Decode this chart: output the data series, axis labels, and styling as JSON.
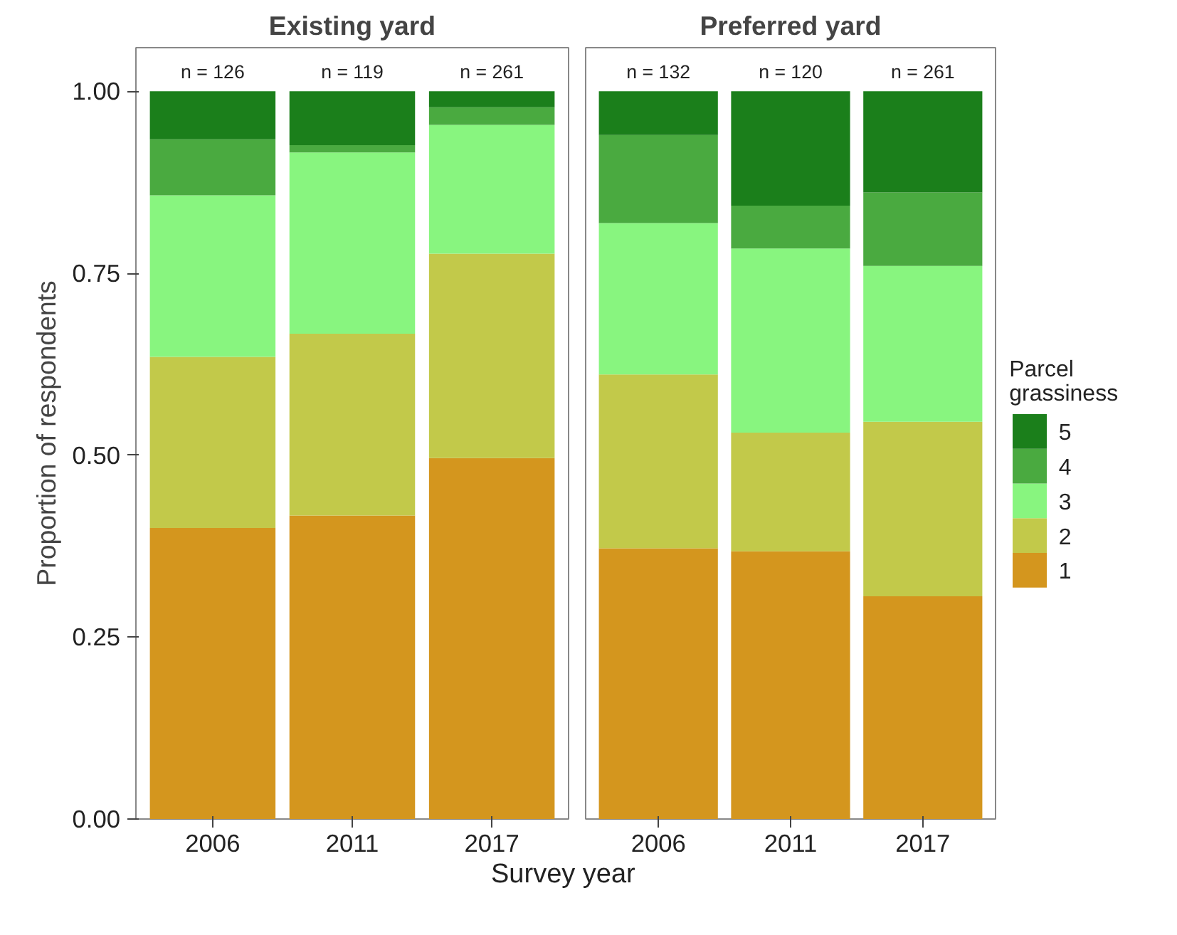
{
  "chart_data": [
    {
      "type": "bar",
      "stacked": true,
      "title": "Existing yard",
      "ylabel": "Proportion of respondents",
      "xlabel": "Survey year",
      "categories": [
        "2006",
        "2011",
        "2017"
      ],
      "ylim": [
        0,
        1.06
      ],
      "yticks": [
        {
          "value": 0,
          "label": "0.00"
        },
        {
          "value": 0.25,
          "label": "0.25"
        },
        {
          "value": 0.5,
          "label": "0.50"
        },
        {
          "value": 0.75,
          "label": "0.75"
        },
        {
          "value": 1,
          "label": "1.00"
        }
      ],
      "grid": false,
      "legend": false,
      "series": [
        {
          "color": "#d4961e",
          "values": [
            0.4,
            0.417,
            0.496
          ]
        },
        {
          "color": "#c2c94a",
          "values": [
            0.235,
            0.25,
            0.281
          ]
        },
        {
          "color": "#88f57f",
          "values": [
            0.222,
            0.249,
            0.177
          ]
        },
        {
          "color": "#4aaa40",
          "values": [
            0.077,
            0.01,
            0.024
          ]
        },
        {
          "color": "#1b7f1b",
          "values": [
            0.066,
            0.074,
            0.022
          ]
        }
      ],
      "annotations": [
        {
          "text": "n = 126",
          "x": "2006",
          "y": 1
        },
        {
          "text": "n = 119",
          "x": "2011",
          "y": 1
        },
        {
          "text": "n = 261",
          "x": "2017",
          "y": 1
        }
      ]
    },
    {
      "type": "bar",
      "stacked": true,
      "title": "Preferred yard",
      "categories": [
        "2006",
        "2011",
        "2017"
      ],
      "ylim": [
        0,
        1.06
      ],
      "tick_labels": "x",
      "grid": false,
      "legend": "right",
      "legend_title": "Parcel grassiness",
      "series": [
        {
          "name": "1",
          "color": "#d4961e",
          "values": [
            0.372,
            0.368,
            0.306
          ]
        },
        {
          "name": "2",
          "color": "#c2c94a",
          "values": [
            0.239,
            0.163,
            0.24
          ]
        },
        {
          "name": "3",
          "color": "#88f57f",
          "values": [
            0.208,
            0.253,
            0.214
          ]
        },
        {
          "name": "4",
          "color": "#4aaa40",
          "values": [
            0.121,
            0.059,
            0.101
          ]
        },
        {
          "name": "5",
          "color": "#1b7f1b",
          "values": [
            0.06,
            0.157,
            0.139
          ]
        }
      ],
      "annotations": [
        {
          "text": "n = 132",
          "x": "2006",
          "y": 1
        },
        {
          "text": "n = 120",
          "x": "2011",
          "y": 1
        },
        {
          "text": "n = 261",
          "x": "2017",
          "y": 1
        }
      ]
    }
  ]
}
